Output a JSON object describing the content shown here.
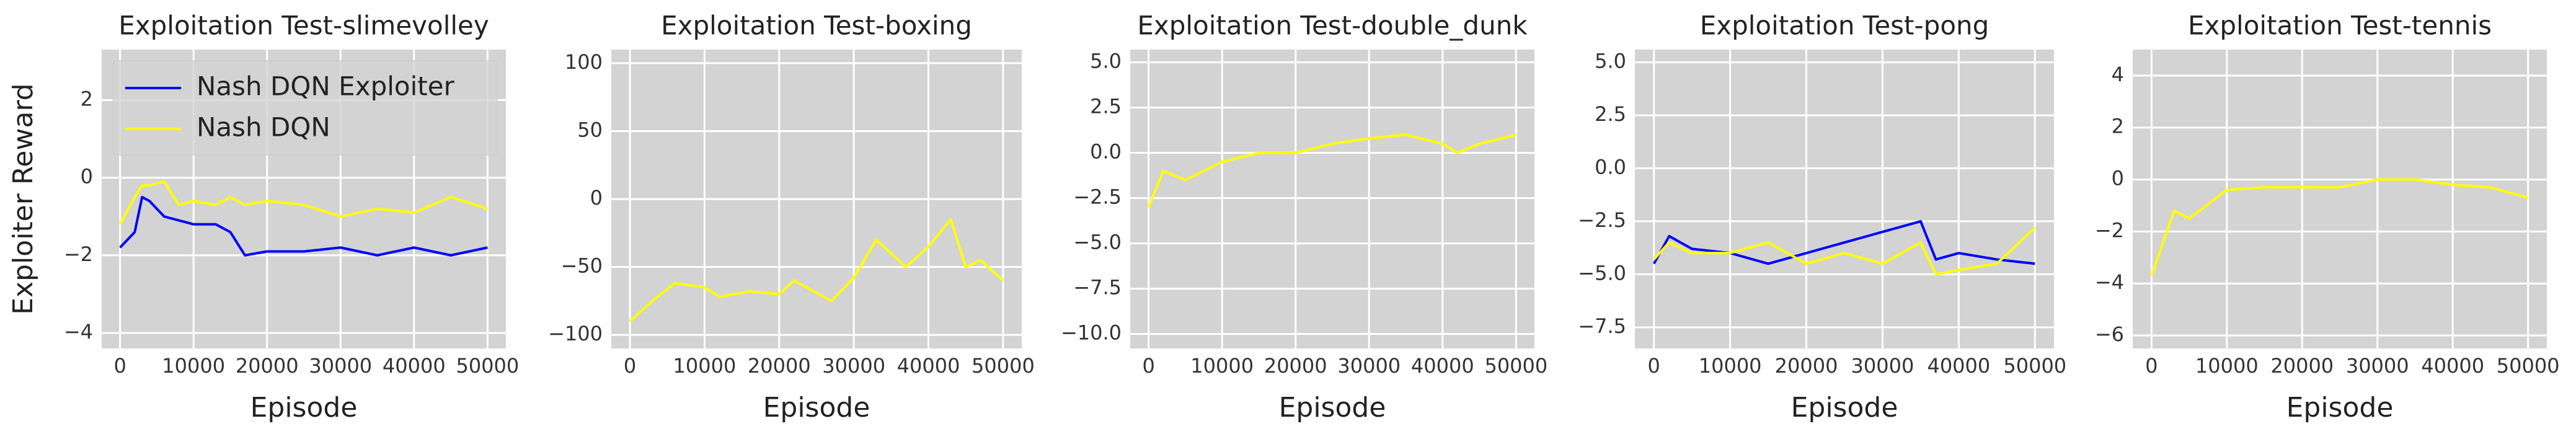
{
  "chart_data": [
    {
      "type": "line",
      "title": "Exploitation Test-slimevolley",
      "x_label": "Episode",
      "y_label": "Exploiter Reward",
      "legend": "upper left",
      "grid": true,
      "xlim": [
        -2500,
        52500
      ],
      "xticks": [
        0,
        10000,
        20000,
        30000,
        40000,
        50000
      ],
      "ylim": [
        -4.4,
        3.3
      ],
      "yticks": [
        {
          "value": -4,
          "label": "−4"
        },
        {
          "value": -2,
          "label": "−2"
        },
        0,
        2
      ],
      "x": [
        0,
        2000,
        3000,
        4000,
        6000,
        8000,
        10000,
        13000,
        15000,
        17000,
        20000,
        25000,
        30000,
        35000,
        40000,
        45000,
        50000
      ],
      "series": [
        {
          "name": "Nash DQN Exploiter",
          "color": "#0000ff",
          "values": [
            -1.8,
            -1.4,
            -0.5,
            -0.6,
            -1.0,
            -1.1,
            -1.2,
            -1.2,
            -1.4,
            -2.0,
            -1.9,
            -1.9,
            -1.8,
            -2.0,
            -1.8,
            -2.0,
            -1.8
          ]
        },
        {
          "name": "Nash DQN",
          "color": "#ffff00",
          "values": [
            -1.2,
            -0.5,
            -0.2,
            -0.2,
            -0.1,
            -0.7,
            -0.6,
            -0.7,
            -0.5,
            -0.7,
            -0.6,
            -0.7,
            -1.0,
            -0.8,
            -0.9,
            -0.5,
            -0.8
          ]
        }
      ]
    },
    {
      "type": "line",
      "title": "Exploitation Test-boxing",
      "x_label": "Episode",
      "grid": true,
      "xlim": [
        -2500,
        52500
      ],
      "xticks": [
        0,
        10000,
        20000,
        30000,
        40000,
        50000
      ],
      "ylim": [
        -110,
        110
      ],
      "yticks": [
        {
          "value": -100,
          "label": "−100"
        },
        {
          "value": -50,
          "label": "−50"
        },
        0,
        50,
        100
      ],
      "x": [
        0,
        3000,
        6000,
        10000,
        12000,
        16000,
        20000,
        22000,
        27000,
        30000,
        33000,
        37000,
        40000,
        43000,
        45000,
        47000,
        50000
      ],
      "series": [
        {
          "color": "#ffff00",
          "values": [
            -90,
            -75,
            -62,
            -65,
            -72,
            -68,
            -70,
            -60,
            -75,
            -58,
            -30,
            -50,
            -35,
            -15,
            -50,
            -45,
            -60
          ]
        }
      ]
    },
    {
      "type": "line",
      "title": "Exploitation Test-double_dunk",
      "x_label": "Episode",
      "grid": true,
      "xlim": [
        -2500,
        52500
      ],
      "xticks": [
        0,
        10000,
        20000,
        30000,
        40000,
        50000
      ],
      "ylim": [
        -10.8,
        5.7
      ],
      "yticks": [
        {
          "value": -10,
          "label": "−10.0"
        },
        {
          "value": -7.5,
          "label": "−7.5"
        },
        {
          "value": -5,
          "label": "−5.0"
        },
        {
          "value": -2.5,
          "label": "−2.5"
        },
        {
          "value": 0,
          "label": "0.0"
        },
        2.5,
        {
          "value": 5,
          "label": "5.0"
        }
      ],
      "x": [
        0,
        2000,
        5000,
        10000,
        15000,
        20000,
        25000,
        30000,
        35000,
        40000,
        42000,
        45000,
        50000
      ],
      "series": [
        {
          "color": "#ffff00",
          "values": [
            -3,
            -1,
            -1.5,
            -0.5,
            0,
            0,
            0.5,
            0.8,
            1,
            0.5,
            0,
            0.5,
            1
          ]
        }
      ]
    },
    {
      "type": "line",
      "title": "Exploitation Test-pong",
      "x_label": "Episode",
      "grid": true,
      "xlim": [
        -2500,
        52500
      ],
      "xticks": [
        0,
        10000,
        20000,
        30000,
        40000,
        50000
      ],
      "ylim": [
        -8.5,
        5.6
      ],
      "yticks": [
        {
          "value": -7.5,
          "label": "−7.5"
        },
        {
          "value": -5,
          "label": "−5.0"
        },
        {
          "value": -2.5,
          "label": "−2.5"
        },
        {
          "value": 0,
          "label": "0.0"
        },
        2.5,
        {
          "value": 5,
          "label": "5.0"
        }
      ],
      "x": [
        0,
        2000,
        5000,
        10000,
        15000,
        20000,
        25000,
        30000,
        35000,
        37000,
        40000,
        45000,
        50000
      ],
      "series": [
        {
          "color": "#0000ff",
          "values": [
            -4.5,
            -3.2,
            -3.8,
            -4,
            -4.5,
            -4,
            -3.5,
            -3,
            -2.5,
            -4.3,
            -4,
            -4.3,
            -4.5
          ]
        },
        {
          "color": "#ffff00",
          "values": [
            -4.3,
            -3.5,
            -4,
            -4,
            -3.5,
            -4.5,
            -4,
            -4.5,
            -3.5,
            -5,
            -4.8,
            -4.5,
            -2.8
          ]
        }
      ]
    },
    {
      "type": "line",
      "title": "Exploitation Test-tennis",
      "x_label": "Episode",
      "grid": true,
      "xlim": [
        -2500,
        52500
      ],
      "xticks": [
        0,
        10000,
        20000,
        30000,
        40000,
        50000
      ],
      "ylim": [
        -6.5,
        5
      ],
      "yticks": [
        {
          "value": -6,
          "label": "−6"
        },
        {
          "value": -4,
          "label": "−4"
        },
        {
          "value": -2,
          "label": "−2"
        },
        0,
        2,
        4
      ],
      "x": [
        0,
        3000,
        5000,
        10000,
        15000,
        20000,
        25000,
        30000,
        35000,
        40000,
        45000,
        50000
      ],
      "series": [
        {
          "color": "#ffff00",
          "values": [
            -3.7,
            -1.2,
            -1.5,
            -0.4,
            -0.3,
            -0.3,
            -0.3,
            0,
            0,
            -0.2,
            -0.3,
            -0.7
          ]
        }
      ]
    }
  ]
}
